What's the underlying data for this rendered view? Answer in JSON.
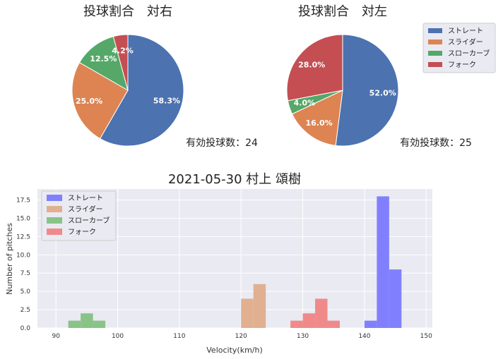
{
  "chart_data": [
    {
      "type": "pie",
      "title": "投球割合　対右",
      "count_label": "有効投球数：24",
      "categories": [
        "ストレート",
        "スライダー",
        "スローカーブ",
        "フォーク"
      ],
      "values": [
        58.3,
        25.0,
        12.5,
        4.2
      ],
      "labels": [
        "58.3%",
        "25.0%",
        "12.5%",
        "4.2%"
      ],
      "colors": [
        "#4c72b0",
        "#dd8452",
        "#55a868",
        "#c44e52"
      ]
    },
    {
      "type": "pie",
      "title": "投球割合　対左",
      "count_label": "有効投球数：25",
      "categories": [
        "ストレート",
        "スライダー",
        "スローカーブ",
        "フォーク"
      ],
      "values": [
        52.0,
        16.0,
        4.0,
        28.0
      ],
      "labels": [
        "52.0%",
        "16.0%",
        "4.0%",
        "28.0%"
      ],
      "colors": [
        "#4c72b0",
        "#dd8452",
        "#55a868",
        "#c44e52"
      ],
      "legend": {
        "placement": "top-right",
        "entries": [
          "ストレート",
          "スライダー",
          "スローカーブ",
          "フォーク"
        ]
      }
    },
    {
      "type": "bar",
      "subtype": "histogram",
      "title": "2021-05-30 村上 頌樹",
      "xlabel": "Velocity(km/h)",
      "ylabel": "Number of pitches",
      "xlim": [
        87,
        151
      ],
      "ylim": [
        0,
        19
      ],
      "x_ticks": [
        "90",
        "100",
        "110",
        "120",
        "130",
        "140",
        "150"
      ],
      "x_tick_values": [
        90,
        100,
        110,
        120,
        130,
        140,
        150
      ],
      "y_ticks": [
        "0.0",
        "2.5",
        "5.0",
        "7.5",
        "10.0",
        "12.5",
        "15.0",
        "17.5"
      ],
      "y_tick_values": [
        0,
        2.5,
        5,
        7.5,
        10,
        12.5,
        15,
        17.5
      ],
      "grid": true,
      "legend_placement": "top-left",
      "series": [
        {
          "name": "ストレート",
          "color": "#8080ff",
          "bins": [
            {
              "x0": 140,
              "x1": 142,
              "count": 1
            },
            {
              "x0": 142,
              "x1": 144,
              "count": 18
            },
            {
              "x0": 144,
              "x1": 146,
              "count": 8
            }
          ]
        },
        {
          "name": "スライダー",
          "color": "#e0b090",
          "bins": [
            {
              "x0": 120,
              "x1": 122,
              "count": 4
            },
            {
              "x0": 122,
              "x1": 124,
              "count": 6
            }
          ]
        },
        {
          "name": "スローカーブ",
          "color": "#88c488",
          "bins": [
            {
              "x0": 92,
              "x1": 94,
              "count": 1
            },
            {
              "x0": 94,
              "x1": 96,
              "count": 2
            },
            {
              "x0": 96,
              "x1": 98,
              "count": 1
            }
          ]
        },
        {
          "name": "フォーク",
          "color": "#f08a8a",
          "bins": [
            {
              "x0": 128,
              "x1": 130,
              "count": 1
            },
            {
              "x0": 130,
              "x1": 132,
              "count": 2
            },
            {
              "x0": 132,
              "x1": 134,
              "count": 4
            },
            {
              "x0": 134,
              "x1": 136,
              "count": 1
            }
          ]
        }
      ]
    }
  ]
}
